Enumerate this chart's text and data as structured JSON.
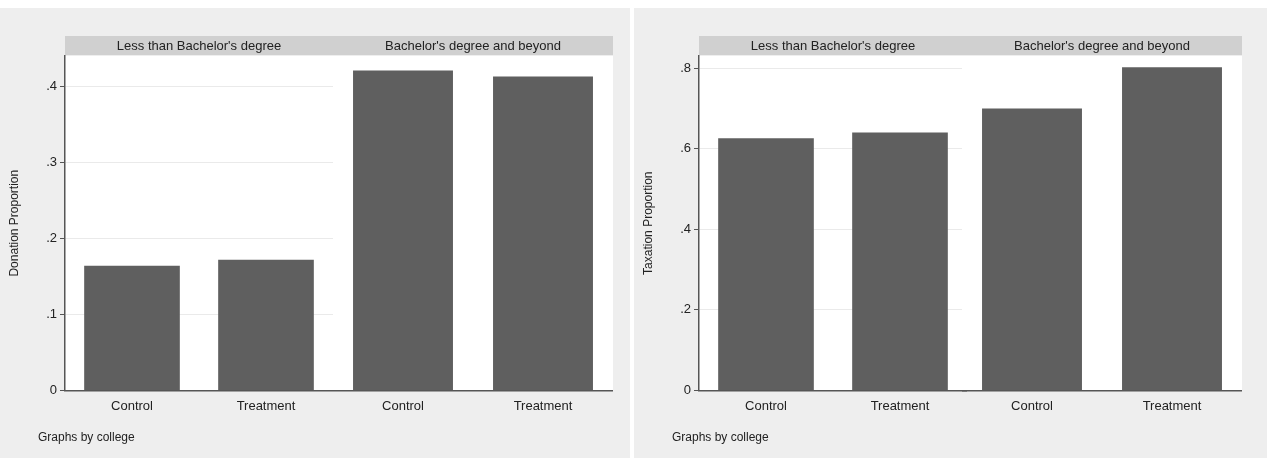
{
  "chart_data": [
    {
      "type": "bar",
      "title": "Less than Bachelor's degree",
      "ylabel": "Donation Proportion",
      "categories": [
        "Control",
        "Treatment"
      ],
      "values": [
        0.164,
        0.172
      ],
      "color": "#5f5f5f",
      "ylim": [
        0,
        0.44
      ],
      "yticks": [
        0,
        {
          "value": 0.1,
          "label": ".1"
        },
        {
          "value": 0.2,
          "label": ".2"
        },
        {
          "value": 0.3,
          "label": ".3"
        },
        {
          "value": 0.4,
          "label": ".4"
        }
      ],
      "grid": "y",
      "legend": false,
      "annotations": [
        "Graphs by college"
      ]
    },
    {
      "type": "bar",
      "title": "Bachelor's degree and beyond",
      "categories": [
        "Control",
        "Treatment"
      ],
      "values": [
        0.421,
        0.413
      ],
      "color": "#5f5f5f",
      "ylim": [
        0,
        0.44
      ],
      "yticks": [
        {
          "value": 0,
          "label": null
        },
        {
          "value": 0.1,
          "label": null
        },
        {
          "value": 0.2,
          "label": null
        },
        {
          "value": 0.3,
          "label": null
        },
        {
          "value": 0.4,
          "label": null
        }
      ],
      "grid": "y",
      "legend": false,
      "tick_labels": "x"
    },
    {
      "type": "bar",
      "title": "Less than Bachelor's degree",
      "ylabel": "Taxation Proportion",
      "categories": [
        "Control",
        "Treatment"
      ],
      "values": [
        0.626,
        0.64
      ],
      "color": "#5f5f5f",
      "ylim": [
        0,
        0.83
      ],
      "yticks": [
        0,
        {
          "value": 0.2,
          "label": ".2"
        },
        {
          "value": 0.4,
          "label": ".4"
        },
        {
          "value": 0.6,
          "label": ".6"
        },
        {
          "value": 0.8,
          "label": ".8"
        }
      ],
      "grid": "y",
      "legend": false,
      "annotations": [
        "Graphs by college"
      ]
    },
    {
      "type": "bar",
      "title": "Bachelor's degree and beyond",
      "categories": [
        "Control",
        "Treatment"
      ],
      "values": [
        0.7,
        0.802
      ],
      "color": "#5f5f5f",
      "ylim": [
        0,
        0.83
      ],
      "yticks": [
        {
          "value": 0,
          "label": null
        },
        {
          "value": 0.2,
          "label": null
        },
        {
          "value": 0.4,
          "label": null
        },
        {
          "value": 0.6,
          "label": null
        },
        {
          "value": 0.8,
          "label": null
        }
      ],
      "grid": "y",
      "legend": false,
      "tick_labels": "x"
    }
  ]
}
